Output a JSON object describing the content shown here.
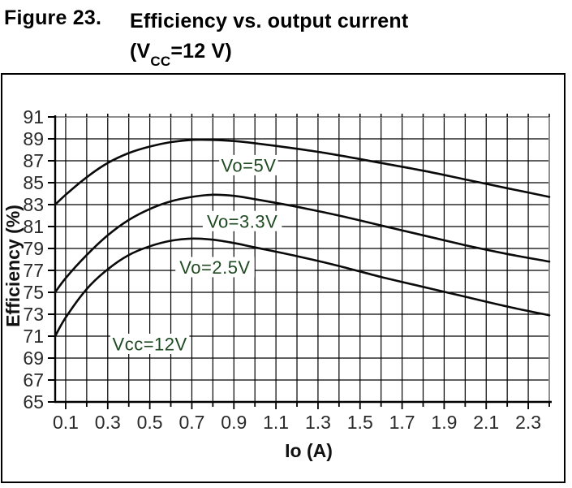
{
  "figure_caption": {
    "label": "Figure 23.",
    "title": "Efficiency vs. output current",
    "subtitle_main": "(V",
    "subtitle_sub": "CC",
    "subtitle_rest": "=12 V)"
  },
  "chart_data": {
    "type": "line",
    "title": "Efficiency vs. output current (Vcc=12 V)",
    "xlabel": "Io (A)",
    "ylabel": "Efficiency (%)",
    "xlim": [
      0.05,
      2.4
    ],
    "ylim": [
      65,
      91
    ],
    "x_minor_step": 0.1,
    "x_tick_labels": [
      "0.1",
      "0.3",
      "0.5",
      "0.7",
      "0.9",
      "1.1",
      "1.3",
      "1.5",
      "1.7",
      "1.9",
      "2.1",
      "2.3"
    ],
    "y_tick_step": 2,
    "y_tick_labels": [
      "91",
      "89",
      "87",
      "85",
      "83",
      "81",
      "79",
      "77",
      "75",
      "73",
      "71",
      "69",
      "67",
      "65"
    ],
    "grid": true,
    "legend_position": "inline-curve-labels",
    "series": [
      {
        "name": "Vo=5V",
        "label": {
          "text": "Vo=5V",
          "x": 0.97,
          "y": 86.6
        },
        "points": [
          [
            0.05,
            83.0
          ],
          [
            0.1,
            83.9
          ],
          [
            0.2,
            85.5
          ],
          [
            0.3,
            86.8
          ],
          [
            0.4,
            87.7
          ],
          [
            0.5,
            88.3
          ],
          [
            0.6,
            88.7
          ],
          [
            0.7,
            88.9
          ],
          [
            0.8,
            88.9
          ],
          [
            0.9,
            88.8
          ],
          [
            1.0,
            88.6
          ],
          [
            1.2,
            88.1
          ],
          [
            1.4,
            87.5
          ],
          [
            1.6,
            86.8
          ],
          [
            1.8,
            86.1
          ],
          [
            2.0,
            85.3
          ],
          [
            2.2,
            84.5
          ],
          [
            2.4,
            83.7
          ]
        ]
      },
      {
        "name": "Vo=3.3V",
        "label": {
          "text": "Vo=3.3V",
          "x": 0.94,
          "y": 81.5
        },
        "points": [
          [
            0.05,
            75.0
          ],
          [
            0.1,
            76.3
          ],
          [
            0.2,
            78.4
          ],
          [
            0.3,
            80.2
          ],
          [
            0.4,
            81.6
          ],
          [
            0.5,
            82.6
          ],
          [
            0.6,
            83.3
          ],
          [
            0.7,
            83.7
          ],
          [
            0.8,
            83.9
          ],
          [
            0.9,
            83.8
          ],
          [
            1.0,
            83.5
          ],
          [
            1.2,
            82.8
          ],
          [
            1.4,
            82.0
          ],
          [
            1.6,
            81.1
          ],
          [
            1.8,
            80.2
          ],
          [
            2.0,
            79.3
          ],
          [
            2.2,
            78.5
          ],
          [
            2.4,
            77.8
          ]
        ]
      },
      {
        "name": "Vo=2.5V",
        "label": {
          "text": "Vo=2.5V",
          "x": 0.81,
          "y": 77.3
        },
        "points": [
          [
            0.05,
            71.0
          ],
          [
            0.1,
            72.7
          ],
          [
            0.2,
            75.3
          ],
          [
            0.3,
            77.1
          ],
          [
            0.4,
            78.4
          ],
          [
            0.5,
            79.2
          ],
          [
            0.6,
            79.7
          ],
          [
            0.7,
            79.9
          ],
          [
            0.8,
            79.8
          ],
          [
            0.9,
            79.5
          ],
          [
            1.0,
            79.1
          ],
          [
            1.2,
            78.3
          ],
          [
            1.4,
            77.4
          ],
          [
            1.6,
            76.4
          ],
          [
            1.8,
            75.5
          ],
          [
            2.0,
            74.6
          ],
          [
            2.2,
            73.7
          ],
          [
            2.4,
            72.9
          ]
        ]
      }
    ],
    "annotations": [
      {
        "text": "Vcc=12V",
        "x": 0.5,
        "y": 70.3
      }
    ]
  },
  "colors": {
    "curve": "#0a0a0a",
    "grid": "#000000",
    "frame_gray": "#8f8f8f",
    "axis_black": "#000000",
    "label_green": "#1f4a21",
    "tick_text": "#2a2a2a"
  }
}
